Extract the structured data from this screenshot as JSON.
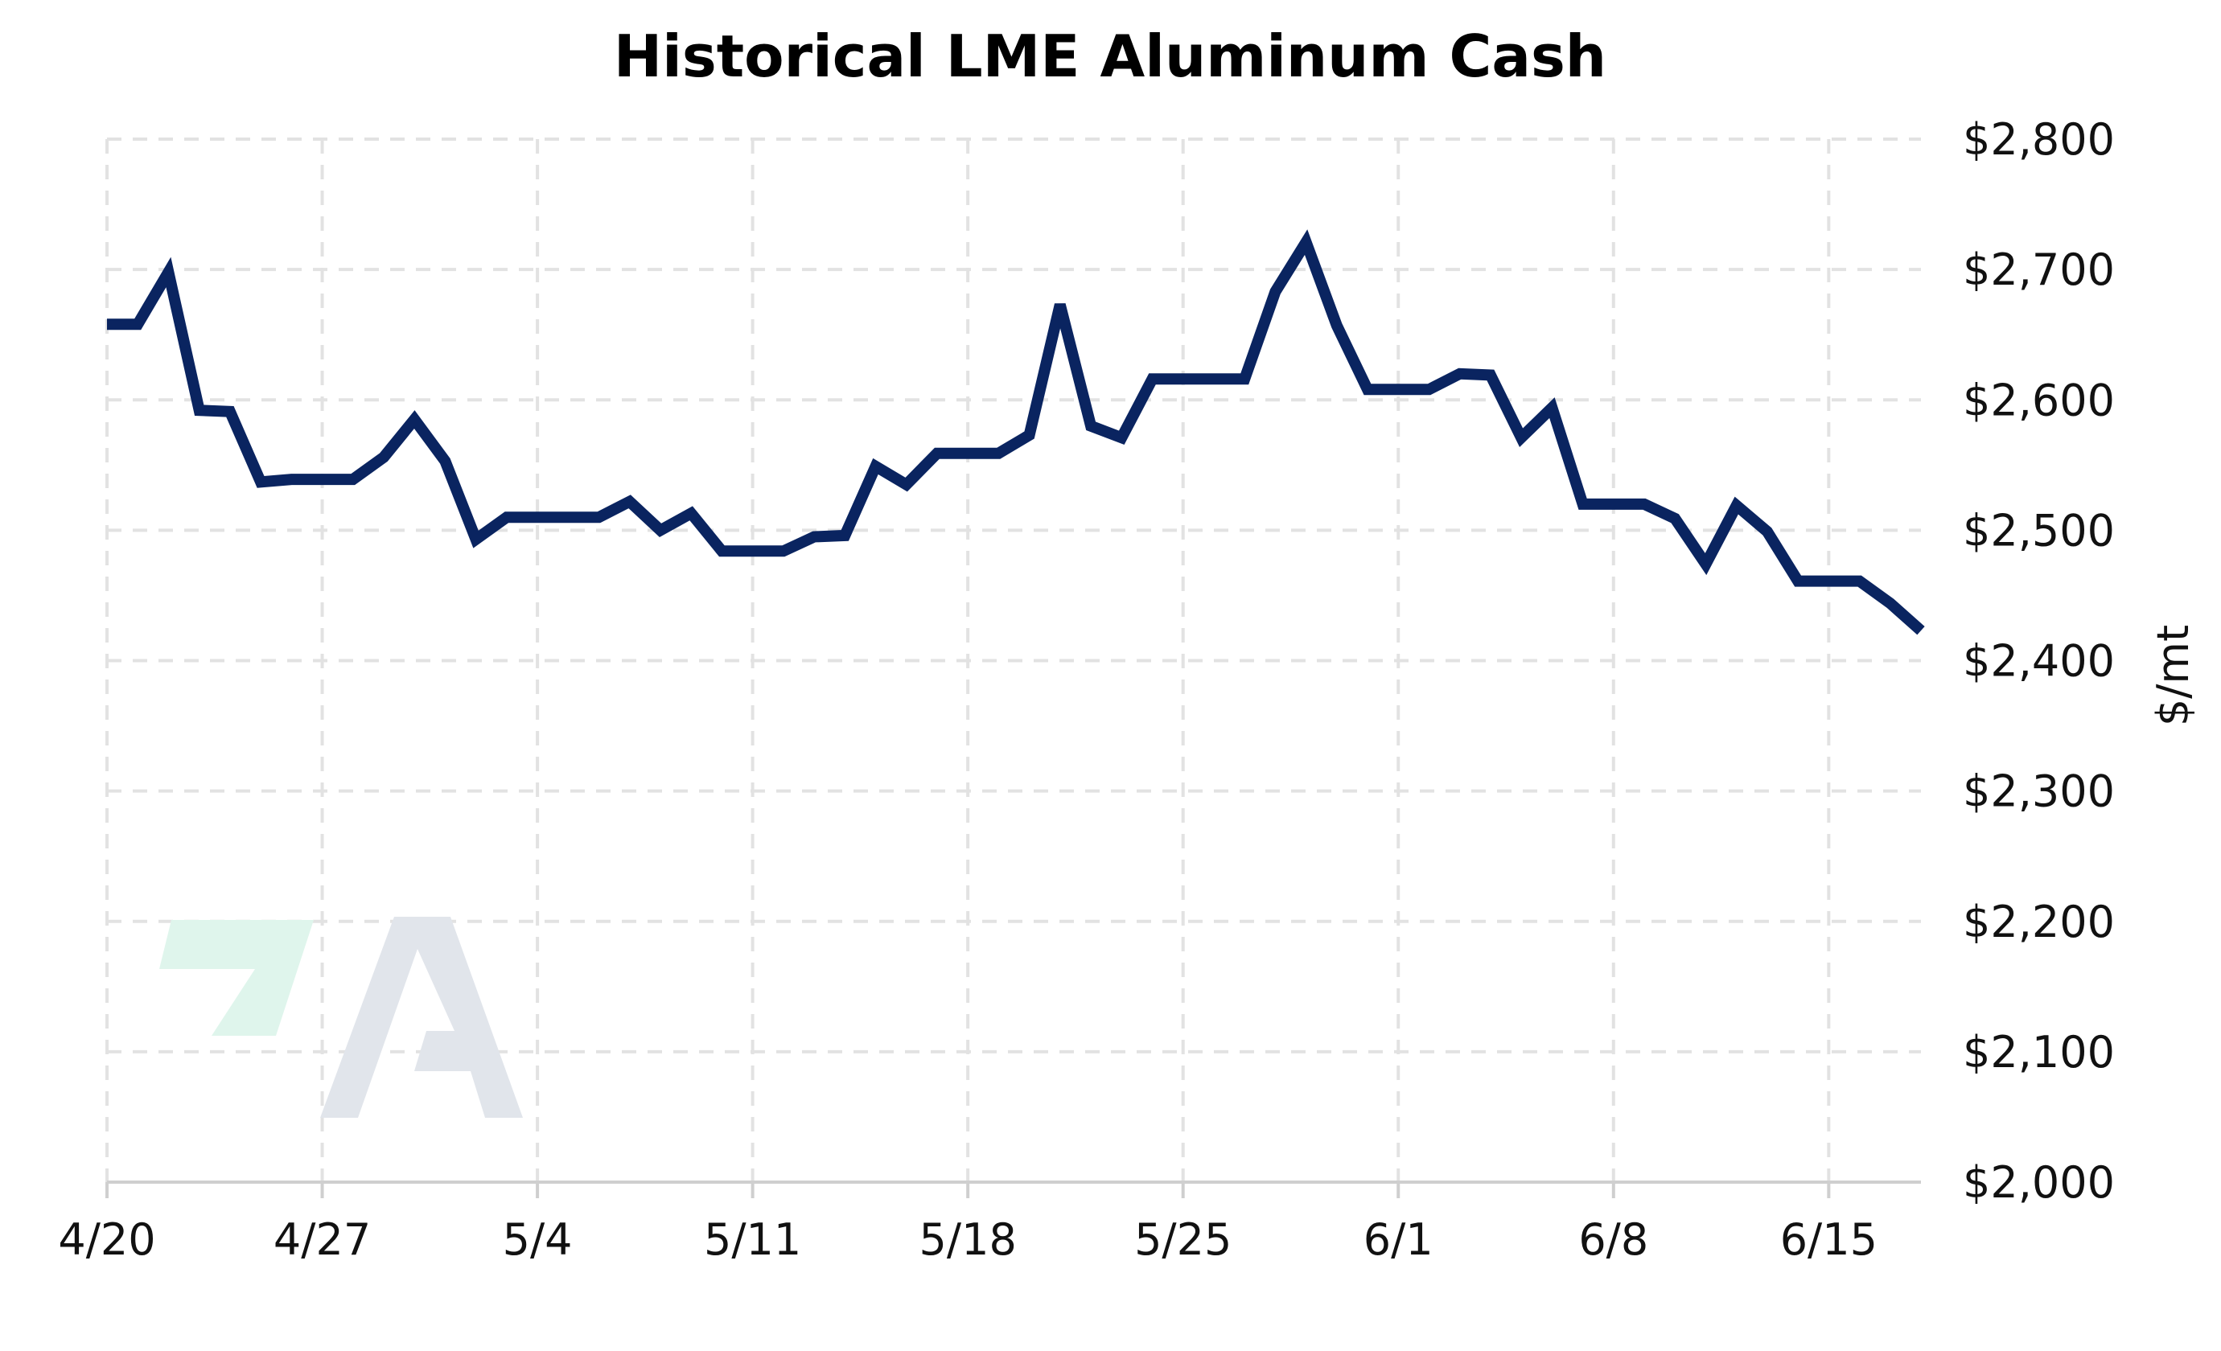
{
  "colors": {
    "line": "#0a2460",
    "grid": "#e2e2e2",
    "watermark_green": "#dff5ec",
    "watermark_gray": "#e1e5eb"
  },
  "watermark": {
    "icon": "logo-watermark-icon"
  },
  "chart_data": {
    "type": "line",
    "title": "Historical LME Aluminum Cash",
    "ylabel": "$/mt",
    "xlabel": "",
    "y_axis_side": "right",
    "grid": true,
    "legend": "none",
    "ylim": [
      2000,
      2800
    ],
    "y_ticks": [
      2000,
      2100,
      2200,
      2300,
      2400,
      2500,
      2600,
      2700,
      2800
    ],
    "y_tick_labels": [
      "$2,000",
      "$2,100",
      "$2,200",
      "$2,300",
      "$2,400",
      "$2,500",
      "$2,600",
      "$2,700",
      "$2,800"
    ],
    "xlim": [
      "4/20",
      "6/18"
    ],
    "x_ticks": [
      "4/20",
      "4/27",
      "5/4",
      "5/11",
      "5/18",
      "5/25",
      "6/1",
      "6/8",
      "6/15"
    ],
    "series": [
      {
        "x": [
          "4/20",
          "4/21",
          "4/22",
          "4/23",
          "4/24",
          "4/25",
          "4/26",
          "4/27",
          "4/28",
          "4/29",
          "4/30",
          "5/1",
          "5/2",
          "5/3",
          "5/4",
          "5/5",
          "5/6",
          "5/7",
          "5/8",
          "5/9",
          "5/10",
          "5/11",
          "5/12",
          "5/13",
          "5/14",
          "5/15",
          "5/16",
          "5/17",
          "5/18",
          "5/19",
          "5/20",
          "5/21",
          "5/22",
          "5/23",
          "5/24",
          "5/25",
          "5/26",
          "5/27",
          "5/28",
          "5/29",
          "5/30",
          "5/31",
          "6/1",
          "6/2",
          "6/3",
          "6/4",
          "6/5",
          "6/6",
          "6/7",
          "6/8",
          "6/9",
          "6/10",
          "6/11",
          "6/12",
          "6/13",
          "6/14",
          "6/15",
          "6/16",
          "6/17",
          "6/18"
        ],
        "values": [
          2658,
          2658,
          2698,
          2592,
          2591,
          2537,
          2539,
          2539,
          2539,
          2556,
          2585,
          2553,
          2493,
          2510,
          2510,
          2510,
          2510,
          2522,
          2500,
          2513,
          2484,
          2484,
          2484,
          2495,
          2496,
          2549,
          2535,
          2559,
          2559,
          2559,
          2573,
          2673,
          2580,
          2571,
          2616,
          2616,
          2616,
          2616,
          2683,
          2721,
          2657,
          2608,
          2608,
          2608,
          2620,
          2619,
          2571,
          2594,
          2520,
          2520,
          2520,
          2509,
          2474,
          2519,
          2499,
          2461,
          2461,
          2461,
          2444,
          2423
        ]
      }
    ]
  }
}
